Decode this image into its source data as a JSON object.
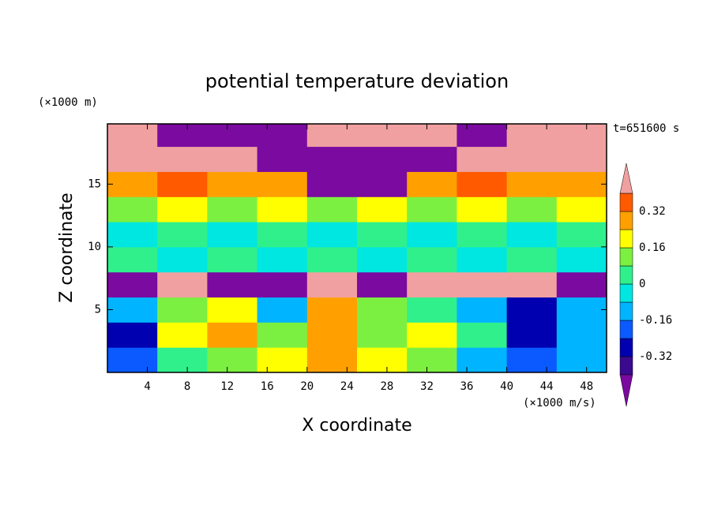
{
  "chart_data": {
    "type": "contour",
    "title": "potential temperature deviation",
    "x_label": "X coordinate",
    "y_label": "Z coordinate",
    "x_unit": "(×1000 m/s)",
    "y_unit": "(×1000 m)",
    "time_label": "t=651600 s",
    "xlim": [
      0,
      50
    ],
    "xticks": [
      4,
      8,
      12,
      16,
      20,
      24,
      28,
      32,
      36,
      40,
      44,
      48
    ],
    "ylim": [
      0,
      19.8
    ],
    "yticks": [
      5,
      10,
      15
    ],
    "x_edges": [
      0,
      5,
      10,
      15,
      20,
      25,
      30,
      35,
      40,
      45,
      50
    ],
    "y_edges": [
      0,
      2,
      4,
      6,
      8,
      10,
      12,
      14,
      16,
      18,
      19.8
    ],
    "z": [
      [
        -0.2,
        0.05,
        0.15,
        0.2,
        0.3,
        0.2,
        0.1,
        -0.1,
        -0.2,
        -0.1
      ],
      [
        -0.3,
        0.2,
        0.25,
        0.1,
        0.3,
        0.1,
        0.2,
        0,
        -0.3,
        -0.1
      ],
      [
        -0.1,
        0.1,
        0.2,
        -0.1,
        0.25,
        0.1,
        0.05,
        -0.1,
        -0.25,
        -0.1
      ],
      [
        -0.5,
        0.45,
        -0.5,
        -0.5,
        0.45,
        -0.5,
        0.45,
        0.45,
        0.45,
        -0.5
      ],
      [
        0.02,
        -0.02,
        0.02,
        -0.02,
        0.02,
        -0.02,
        0.02,
        -0.02,
        0.02,
        -0.02
      ],
      [
        -0.03,
        0.02,
        -0.03,
        0.02,
        -0.03,
        0.02,
        -0.03,
        0.02,
        -0.03,
        0.02
      ],
      [
        0.15,
        0.2,
        0.15,
        0.2,
        0.15,
        0.2,
        0.15,
        0.2,
        0.15,
        0.2
      ],
      [
        0.3,
        0.35,
        0.3,
        0.25,
        -0.45,
        -0.45,
        0.3,
        0.35,
        0.3,
        0.3
      ],
      [
        0.45,
        0.45,
        0.45,
        -0.5,
        -0.5,
        -0.5,
        -0.5,
        0.45,
        0.45,
        0.45
      ],
      [
        0.45,
        -0.5,
        -0.5,
        -0.5,
        0.45,
        0.45,
        0.45,
        -0.5,
        0.45,
        0.45
      ]
    ],
    "levels": [
      -0.4,
      -0.32,
      -0.24,
      -0.16,
      -0.08,
      0,
      0.08,
      0.16,
      0.24,
      0.32,
      0.4
    ],
    "colors": [
      "#7a0aa0",
      "#3a0a90",
      "#0000b0",
      "#0a5aff",
      "#00b4ff",
      "#00e6e0",
      "#30f08c",
      "#7cf040",
      "#ffff00",
      "#ffa000",
      "#ff5a00",
      "#f0a0a0"
    ],
    "cbar_ticks": [
      -0.32,
      -0.16,
      0,
      0.16,
      0.32
    ]
  }
}
